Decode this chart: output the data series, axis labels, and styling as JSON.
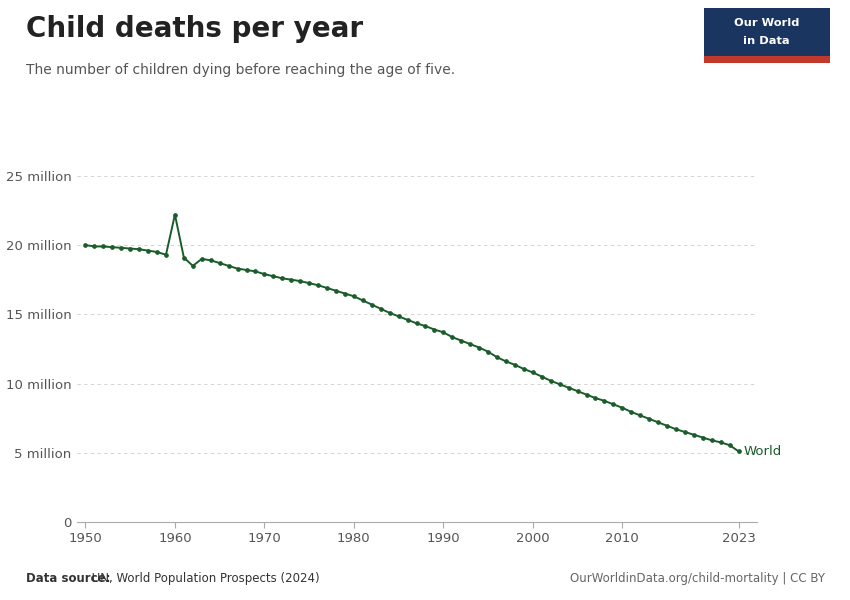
{
  "title": "Child deaths per year",
  "subtitle": "The number of children dying before reaching the age of five.",
  "line_color": "#1a5c2a",
  "marker_color": "#1a5c2a",
  "background_color": "#ffffff",
  "grid_color": "#cccccc",
  "xlim": [
    1949,
    2025
  ],
  "ylim": [
    0,
    26000000
  ],
  "yticks": [
    0,
    5000000,
    10000000,
    15000000,
    20000000,
    25000000
  ],
  "ytick_labels": [
    "0",
    "5 million",
    "10 million",
    "15 million",
    "20 million",
    "25 million"
  ],
  "xticks": [
    1950,
    1960,
    1970,
    1980,
    1990,
    2000,
    2010,
    2023
  ],
  "data_source_bold": "Data source:",
  "data_source_rest": " UN, World Population Prospects (2024)",
  "url": "OurWorldinData.org/child-mortality | CC BY",
  "world_label": "World",
  "logo_bg": "#1a3a5c",
  "logo_red": "#c0392b",
  "years": [
    1950,
    1951,
    1952,
    1953,
    1954,
    1955,
    1956,
    1957,
    1958,
    1959,
    1960,
    1961,
    1962,
    1963,
    1964,
    1965,
    1966,
    1967,
    1968,
    1969,
    1970,
    1971,
    1972,
    1973,
    1974,
    1975,
    1976,
    1977,
    1978,
    1979,
    1980,
    1981,
    1982,
    1983,
    1984,
    1985,
    1986,
    1987,
    1988,
    1989,
    1990,
    1991,
    1992,
    1993,
    1994,
    1995,
    1996,
    1997,
    1998,
    1999,
    2000,
    2001,
    2002,
    2003,
    2004,
    2005,
    2006,
    2007,
    2008,
    2009,
    2010,
    2011,
    2012,
    2013,
    2014,
    2015,
    2016,
    2017,
    2018,
    2019,
    2020,
    2021,
    2022,
    2023
  ],
  "values": [
    20000000,
    19900000,
    19900000,
    19850000,
    19800000,
    19750000,
    19700000,
    19600000,
    19500000,
    19300000,
    22200000,
    19100000,
    18500000,
    19000000,
    18900000,
    18700000,
    18500000,
    18300000,
    18200000,
    18100000,
    17900000,
    17750000,
    17600000,
    17500000,
    17400000,
    17250000,
    17100000,
    16900000,
    16700000,
    16500000,
    16300000,
    16000000,
    15700000,
    15400000,
    15100000,
    14850000,
    14600000,
    14350000,
    14150000,
    13900000,
    13700000,
    13350000,
    13100000,
    12850000,
    12600000,
    12300000,
    11900000,
    11600000,
    11350000,
    11050000,
    10800000,
    10500000,
    10200000,
    9950000,
    9700000,
    9450000,
    9200000,
    8950000,
    8750000,
    8500000,
    8250000,
    7950000,
    7700000,
    7450000,
    7200000,
    6950000,
    6700000,
    6500000,
    6300000,
    6100000,
    5900000,
    5750000,
    5550000,
    5100000
  ]
}
